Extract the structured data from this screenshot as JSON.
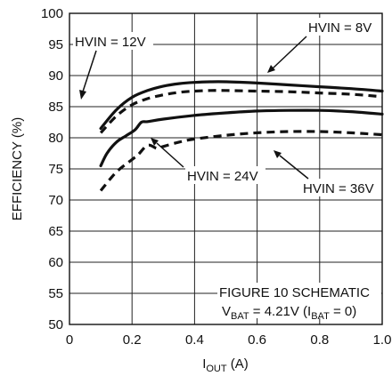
{
  "chart_data": {
    "type": "line",
    "xlabel": {
      "main": "I",
      "sub": "OUT",
      "rest": " (A)"
    },
    "ylabel": "EFFICIENCY (%)",
    "xlim": [
      0,
      1.0
    ],
    "ylim": [
      50,
      100
    ],
    "xticks": [
      {
        "v": 0,
        "label": "0"
      },
      {
        "v": 0.2,
        "label": "0.2"
      },
      {
        "v": 0.4,
        "label": "0.4"
      },
      {
        "v": 0.6,
        "label": "0.6"
      },
      {
        "v": 0.8,
        "label": "0.8"
      },
      {
        "v": 1.0,
        "label": "1.0"
      }
    ],
    "yticks": [
      {
        "v": 50,
        "label": "50"
      },
      {
        "v": 55,
        "label": "55"
      },
      {
        "v": 60,
        "label": "60"
      },
      {
        "v": 65,
        "label": "65"
      },
      {
        "v": 70,
        "label": "70"
      },
      {
        "v": 75,
        "label": "75"
      },
      {
        "v": 80,
        "label": "80"
      },
      {
        "v": 85,
        "label": "85"
      },
      {
        "v": 90,
        "label": "90"
      },
      {
        "v": 95,
        "label": "95"
      },
      {
        "v": 100,
        "label": "100"
      }
    ],
    "grid": true,
    "series": [
      {
        "name": "HVIN = 8V",
        "style": "solid",
        "x": [
          0.1,
          0.15,
          0.2,
          0.25,
          0.3,
          0.35,
          0.4,
          0.45,
          0.5,
          0.6,
          0.7,
          0.8,
          0.9,
          1.0
        ],
        "y": [
          81.5,
          84.5,
          86.5,
          87.6,
          88.3,
          88.7,
          88.9,
          89.0,
          89.0,
          88.8,
          88.5,
          88.2,
          87.9,
          87.5
        ]
      },
      {
        "name": "HVIN = 12V",
        "style": "dashed",
        "x": [
          0.1,
          0.15,
          0.2,
          0.25,
          0.3,
          0.35,
          0.4,
          0.45,
          0.5,
          0.6,
          0.7,
          0.8,
          0.9,
          1.0
        ],
        "y": [
          80.8,
          83.5,
          85.3,
          86.3,
          86.9,
          87.3,
          87.5,
          87.6,
          87.6,
          87.5,
          87.4,
          87.2,
          87.0,
          86.6
        ]
      },
      {
        "name": "HVIN = 24V",
        "style": "solid",
        "x": [
          0.1,
          0.12,
          0.15,
          0.18,
          0.21,
          0.23,
          0.25,
          0.3,
          0.4,
          0.5,
          0.6,
          0.7,
          0.8,
          0.9,
          1.0
        ],
        "y": [
          75.5,
          77.5,
          79.3,
          80.3,
          81.3,
          82.5,
          82.6,
          83.0,
          83.6,
          84.0,
          84.3,
          84.4,
          84.4,
          84.2,
          83.8
        ]
      },
      {
        "name": "HVIN = 36V",
        "style": "dashed",
        "x": [
          0.1,
          0.15,
          0.2,
          0.22,
          0.25,
          0.28,
          0.3,
          0.35,
          0.4,
          0.5,
          0.6,
          0.7,
          0.8,
          0.9,
          1.0
        ],
        "y": [
          71.5,
          74.5,
          76.5,
          77.3,
          78.8,
          78.3,
          78.6,
          79.3,
          79.8,
          80.4,
          80.8,
          81.0,
          81.0,
          80.8,
          80.5
        ]
      }
    ],
    "annotations": {
      "hvin8": "HVIN = 8V",
      "hvin12": "HVIN = 12V",
      "hvin24": "HVIN = 24V",
      "hvin36": "HVIN = 36V",
      "figure": "FIGURE 10 SCHEMATIC",
      "vbat": {
        "v": "V",
        "v_sub": "BAT",
        "mid": " = 4.21V (I",
        "i_sub": "BAT",
        "end": " = 0)"
      }
    }
  }
}
